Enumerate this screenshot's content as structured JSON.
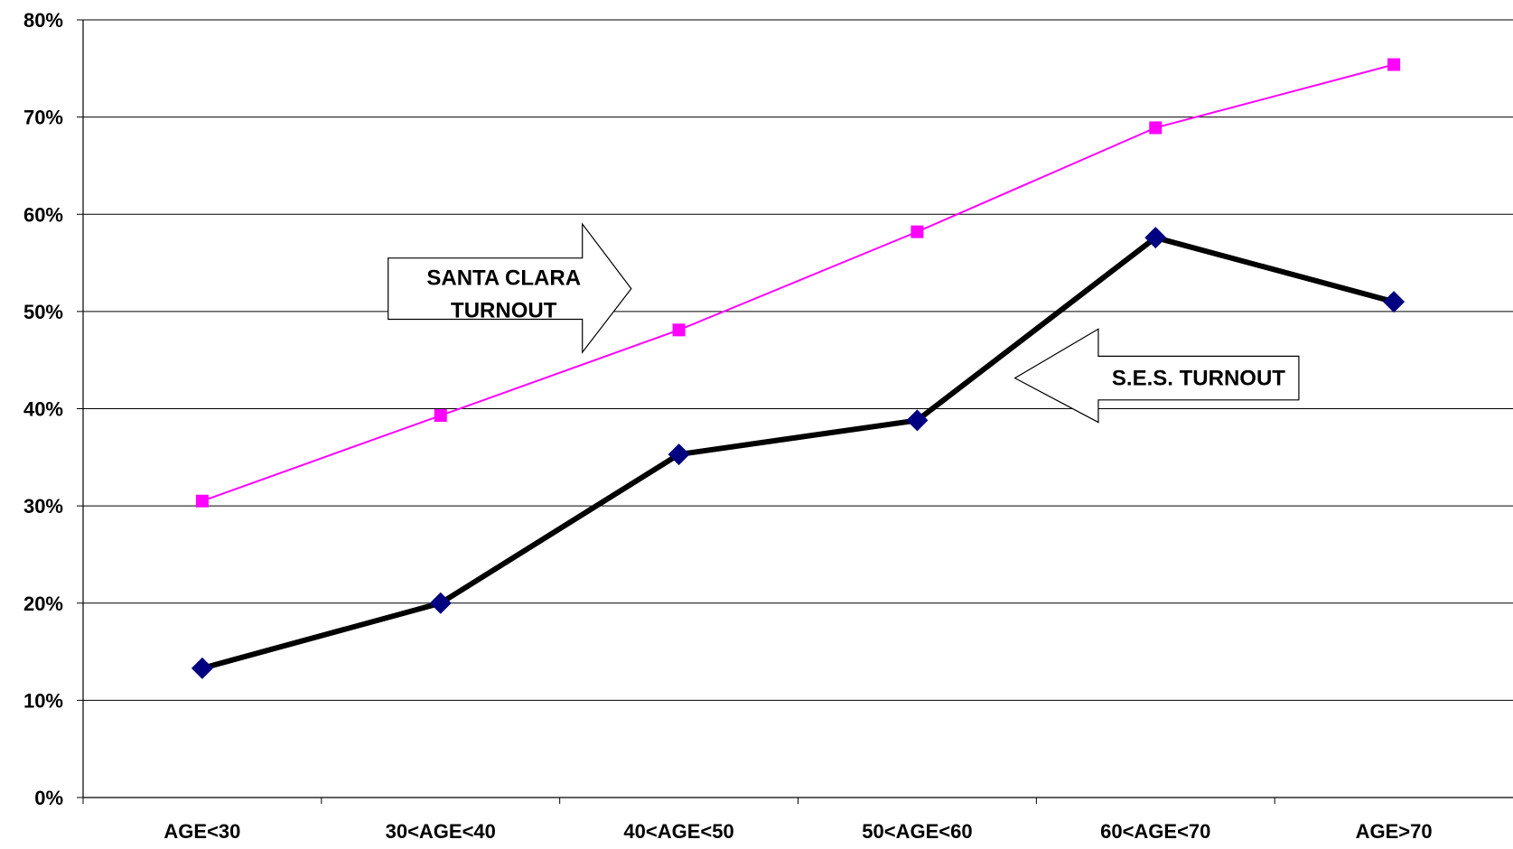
{
  "chart_data": {
    "type": "line",
    "categories": [
      "AGE<30",
      "30<AGE<40",
      "40<AGE<50",
      "50<AGE<60",
      "60<AGE<70",
      "AGE>70"
    ],
    "series": [
      {
        "name": "SANTA CLARA TURNOUT",
        "values": [
          30.5,
          39.3,
          48.1,
          58.2,
          68.9,
          75.4
        ],
        "color": "#ff00ff",
        "marker": "square"
      },
      {
        "name": "S.E.S. TURNOUT",
        "values": [
          13.3,
          20.0,
          35.3,
          38.8,
          57.6,
          51.0
        ],
        "color": "#000000",
        "marker_color": "#000080",
        "marker": "diamond"
      }
    ],
    "ylim": [
      0,
      80
    ],
    "yticks": [
      0,
      10,
      20,
      30,
      40,
      50,
      60,
      70,
      80
    ],
    "ytick_labels": [
      "0%",
      "10%",
      "20%",
      "30%",
      "40%",
      "50%",
      "60%",
      "70%",
      "80%"
    ],
    "grid": true,
    "callouts": [
      {
        "lines": [
          "SANTA CLARA",
          "TURNOUT"
        ],
        "direction": "right",
        "series": "SANTA CLARA TURNOUT"
      },
      {
        "lines": [
          "S.E.S. TURNOUT"
        ],
        "direction": "left",
        "series": "S.E.S. TURNOUT"
      }
    ]
  }
}
